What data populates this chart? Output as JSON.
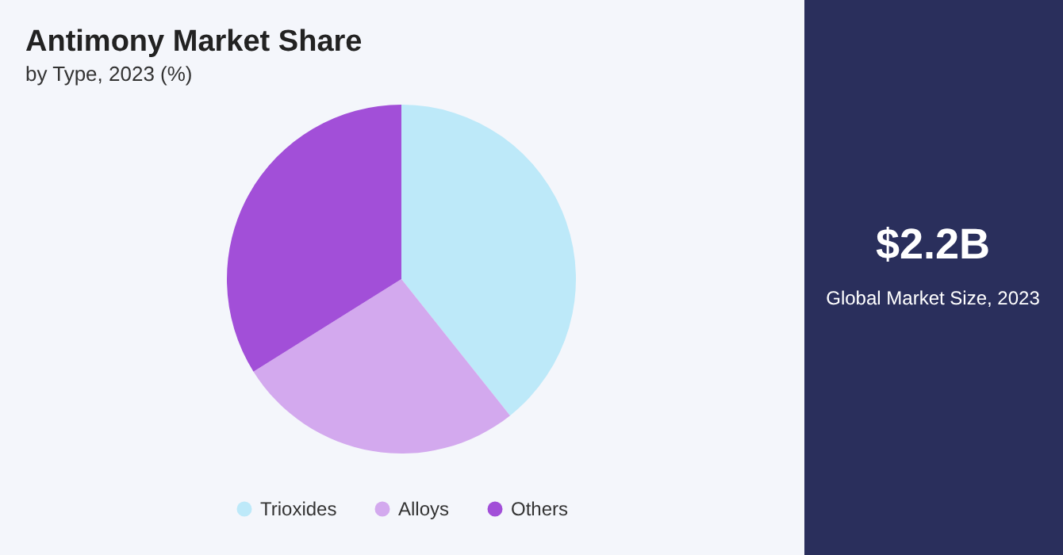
{
  "chart_data": {
    "type": "pie",
    "title": "Antimony Market Share",
    "subtitle": "by Type, 2023 (%)",
    "categories": [
      "Trioxides",
      "Alloys",
      "Others"
    ],
    "values": [
      39.3,
      26.8,
      33.9
    ],
    "colors": [
      "#bde9f9",
      "#d3a9ee",
      "#a24fd8"
    ],
    "legend": "bottom",
    "annotations": [
      "$2.2B",
      "Global Market Size, 2023"
    ]
  }
}
